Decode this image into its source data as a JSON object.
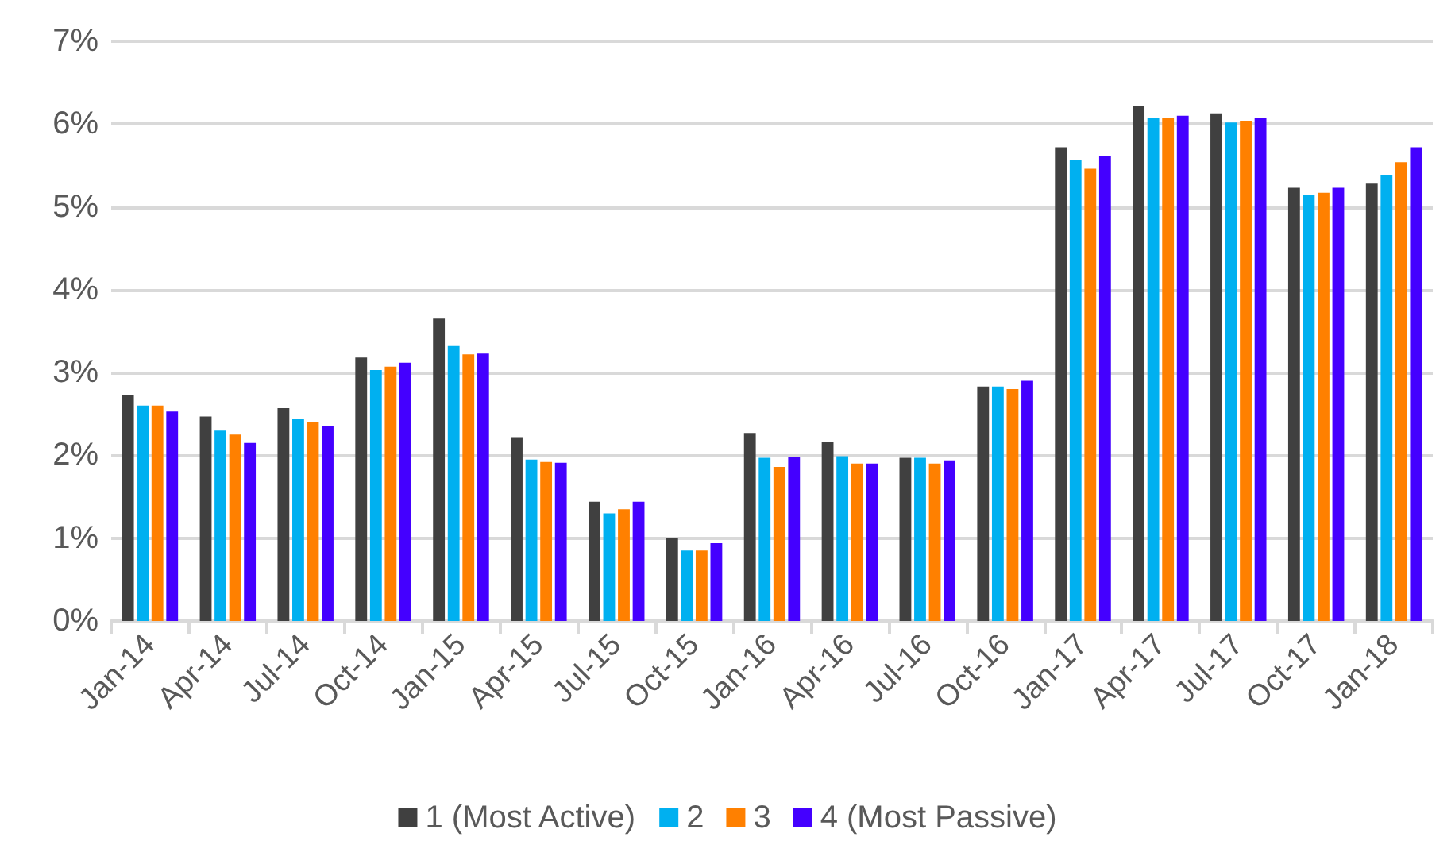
{
  "chart_data": {
    "type": "bar",
    "categories": [
      "Jan-14",
      "Apr-14",
      "Jul-14",
      "Oct-14",
      "Jan-15",
      "Apr-15",
      "Jul-15",
      "Oct-15",
      "Jan-16",
      "Apr-16",
      "Jul-16",
      "Oct-16",
      "Jan-17",
      "Apr-17",
      "Jul-17",
      "Oct-17",
      "Jan-18"
    ],
    "series": [
      {
        "name": "1 (Most Active)",
        "color": "#404040",
        "values": [
          2.73,
          2.47,
          2.57,
          3.18,
          3.65,
          2.22,
          1.44,
          1.0,
          2.27,
          2.16,
          1.97,
          2.83,
          5.72,
          6.22,
          6.13,
          5.23,
          5.28
        ]
      },
      {
        "name": "2",
        "color": "#00b0f0",
        "values": [
          2.6,
          2.3,
          2.44,
          3.03,
          3.32,
          1.95,
          1.3,
          0.85,
          1.97,
          1.99,
          1.97,
          2.83,
          5.57,
          6.07,
          6.02,
          5.15,
          5.39
        ]
      },
      {
        "name": "3",
        "color": "#ff8000",
        "values": [
          2.6,
          2.25,
          2.4,
          3.07,
          3.22,
          1.92,
          1.35,
          0.85,
          1.86,
          1.9,
          1.9,
          2.8,
          5.46,
          6.07,
          6.04,
          5.17,
          5.54
        ]
      },
      {
        "name": "4 (Most Passive)",
        "color": "#4400ff",
        "values": [
          2.53,
          2.15,
          2.36,
          3.12,
          3.23,
          1.91,
          1.44,
          0.94,
          1.98,
          1.9,
          1.94,
          2.9,
          5.62,
          6.1,
          6.07,
          5.23,
          5.72
        ]
      }
    ],
    "ylim": [
      0,
      7
    ],
    "yticks": [
      {
        "value": 0,
        "label": "0%"
      },
      {
        "value": 1,
        "label": "1%"
      },
      {
        "value": 2,
        "label": "2%"
      },
      {
        "value": 3,
        "label": "3%"
      },
      {
        "value": 4,
        "label": "4%"
      },
      {
        "value": 5,
        "label": "5%"
      },
      {
        "value": 6,
        "label": "6%"
      },
      {
        "value": 7,
        "label": "7%"
      }
    ],
    "grid": "y",
    "legend": "bottom"
  }
}
